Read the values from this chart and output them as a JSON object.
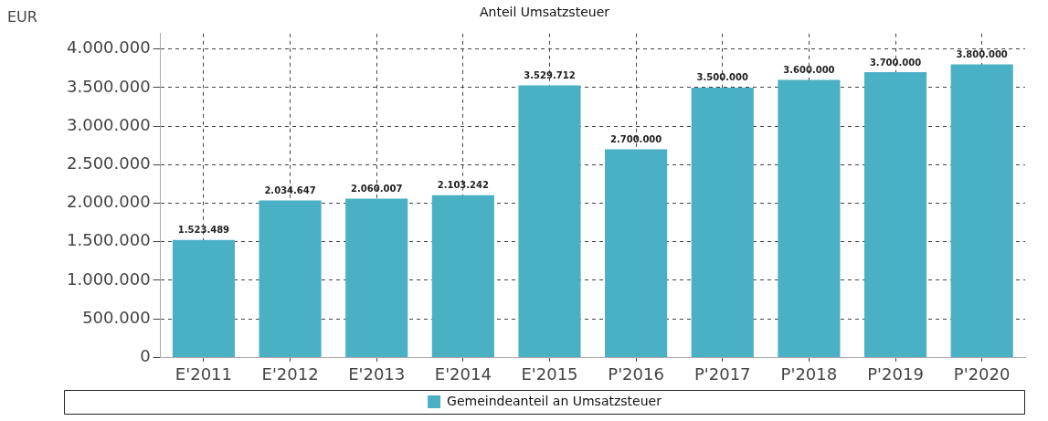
{
  "chart_data": {
    "type": "bar",
    "title": "Anteil Umsatzsteuer",
    "ylabel": "EUR",
    "categories": [
      "E'2011",
      "E'2012",
      "E'2013",
      "E'2014",
      "E'2015",
      "P'2016",
      "P'2017",
      "P'2018",
      "P'2019",
      "P'2020"
    ],
    "series": [
      {
        "name": "Gemeindeanteil an Umsatzsteuer",
        "color": "#4ab0c4",
        "values": [
          1523489,
          2034647,
          2060007,
          2103242,
          3529712,
          2700000,
          3500000,
          3600000,
          3700000,
          3800000
        ],
        "value_labels": [
          "1.523.489",
          "2.034.647",
          "2.060.007",
          "2.103.242",
          "3.529.712",
          "2.700.000",
          "3.500.000",
          "3.600.000",
          "3.700.000",
          "3.800.000"
        ]
      }
    ],
    "ylim": [
      0,
      4200000
    ],
    "yticks": [
      {
        "value": 0,
        "label": "0"
      },
      {
        "value": 500000,
        "label": "500.000"
      },
      {
        "value": 1000000,
        "label": "1.000.000"
      },
      {
        "value": 1500000,
        "label": "1.500.000"
      },
      {
        "value": 2000000,
        "label": "2.000.000"
      },
      {
        "value": 2500000,
        "label": "2.500.000"
      },
      {
        "value": 3000000,
        "label": "3.000.000"
      },
      {
        "value": 3500000,
        "label": "3.500.000"
      },
      {
        "value": 4000000,
        "label": "4.000.000"
      }
    ],
    "grid": true,
    "legend": "bottom"
  }
}
